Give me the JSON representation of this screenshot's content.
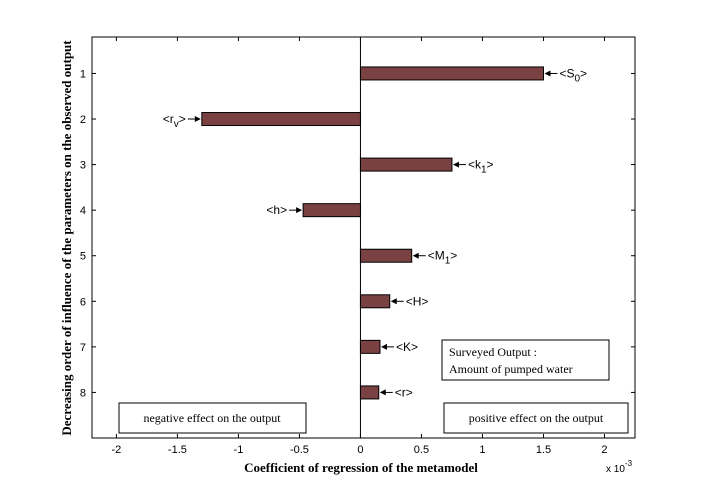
{
  "chart_data": {
    "type": "bar",
    "orientation": "horizontal",
    "categories": [
      "1",
      "2",
      "3",
      "4",
      "5",
      "6",
      "7",
      "8"
    ],
    "bar_labels": [
      {
        "base": "S",
        "sub": "0"
      },
      {
        "base": "r",
        "sub": "v"
      },
      {
        "base": "k",
        "sub": "1"
      },
      {
        "base": "h",
        "sub": ""
      },
      {
        "base": "M",
        "sub": "1"
      },
      {
        "base": "H",
        "sub": ""
      },
      {
        "base": "K",
        "sub": ""
      },
      {
        "base": "r",
        "sub": ""
      }
    ],
    "values": [
      1.5,
      -1.3,
      0.75,
      -0.47,
      0.42,
      0.24,
      0.16,
      0.15
    ],
    "xlabel": "Coefficient of regression of the metamodel",
    "ylabel": "Decreasing order of influence of the parameters on the observed output",
    "x_ticks": [
      "-2",
      "-1.5",
      "-1",
      "-0.5",
      "0",
      "0.5",
      "1",
      "1.5",
      "2"
    ],
    "x_tick_values": [
      -2,
      -1.5,
      -1,
      -0.5,
      0,
      0.5,
      1,
      1.5,
      2
    ],
    "xlim": [
      -2.2,
      2.25
    ],
    "ylim": [
      0.2,
      9.0
    ],
    "x_exponent_base": "x 10",
    "x_exponent_power": "-3",
    "annotations": {
      "output_line1": "Surveyed Output :",
      "output_line2": "Amount of pumped water",
      "negative_note": "negative effect on the output",
      "positive_note": "positive effect on the output"
    },
    "colors": {
      "bar_fill": "#7a4142",
      "bar_stroke": "#000000"
    }
  }
}
